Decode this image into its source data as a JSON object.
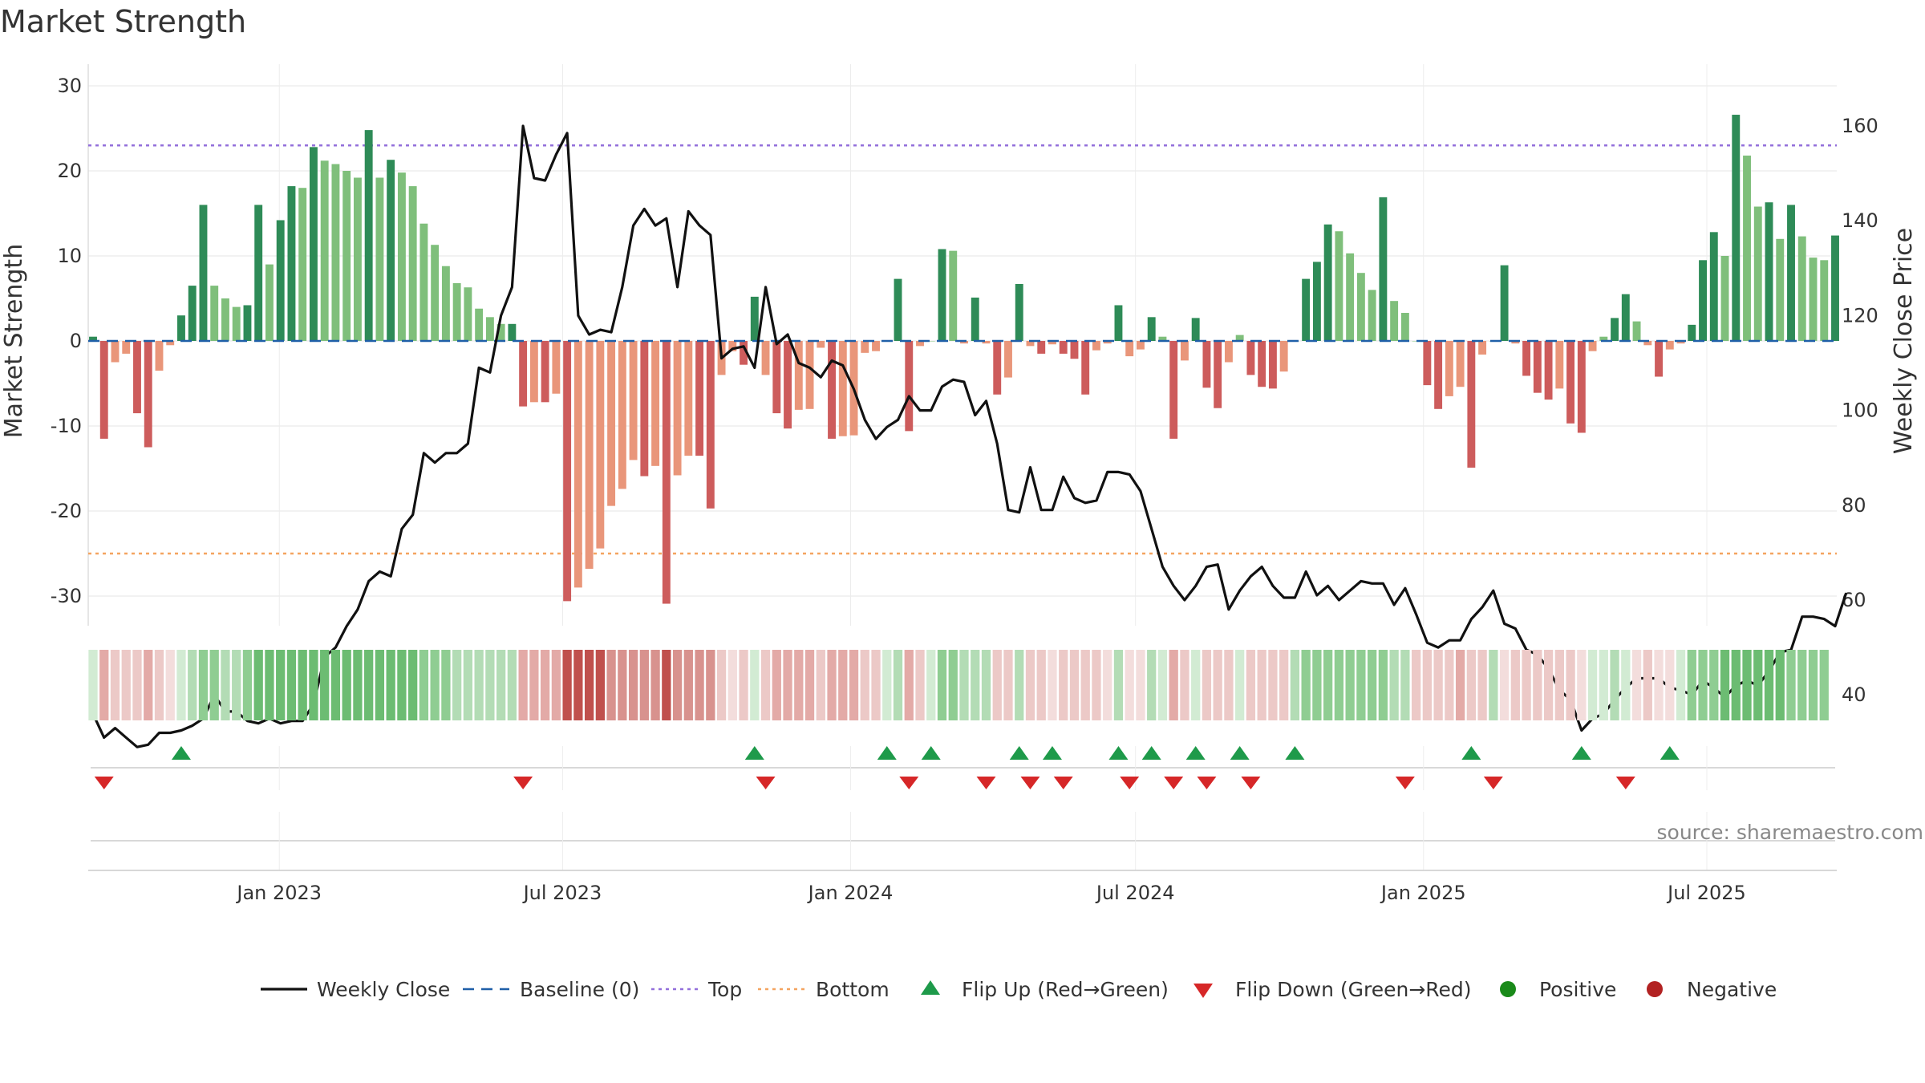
{
  "chart_data": {
    "type": "bar",
    "title": "Market Strength",
    "ylabel": "Market Strength",
    "y2label": "Weekly Close Price",
    "ylim": [
      -33,
      31
    ],
    "y2lim": [
      20,
      165
    ],
    "y_ticks": [
      30,
      20,
      10,
      0,
      -10,
      -20,
      -30
    ],
    "y2_ticks": [
      160,
      140,
      120,
      100,
      80,
      60,
      40
    ],
    "x_start": "2022-09-04",
    "x_end": "2025-09-21",
    "x_tick_labels": [
      "Jan 2023",
      "Jul 2023",
      "Jan 2024",
      "Jul 2024",
      "Jan 2025",
      "Jul 2025"
    ],
    "x_tick_dates": [
      "2023-01-01",
      "2023-07-01",
      "2024-01-01",
      "2024-07-01",
      "2025-01-01",
      "2025-07-01"
    ],
    "top_level": 23,
    "bottom_level": -25,
    "baseline": 0,
    "grid": true,
    "source": "source: sharemaestro.com",
    "colors": {
      "strong_positive": "#2e8b57",
      "weak_positive": "#7fbf7b",
      "strong_negative": "#cd5c5c",
      "weak_negative": "#e9967a",
      "close": "#111111",
      "baseline": "#1f5fa8",
      "top": "#9370db",
      "bottom": "#f4a460",
      "flip_up": "#1e9a4a",
      "flip_down": "#d62728",
      "positive": "#1a8a1a",
      "negative": "#b22222"
    },
    "strength": [
      0.5,
      -11.5,
      -2.5,
      -1.5,
      -8.5,
      -12.5,
      -3.5,
      -0.5,
      3,
      6.5,
      16,
      6.5,
      5,
      4,
      4.2,
      16,
      9,
      14.2,
      18.2,
      18,
      22.8,
      21.2,
      20.8,
      20,
      19.2,
      24.8,
      19.2,
      21.3,
      19.8,
      18.2,
      13.8,
      11.3,
      8.8,
      6.8,
      6.3,
      3.8,
      2.8,
      2,
      2,
      -7.7,
      -7.2,
      -7.2,
      -6.2,
      -30.6,
      -29,
      -26.8,
      -24.4,
      -19.4,
      -17.4,
      -14,
      -15.9,
      -14.7,
      -30.9,
      -15.8,
      -13.5,
      -13.5,
      -19.7,
      -4,
      -1.2,
      -2.8,
      5.2,
      -4,
      -8.5,
      -10.3,
      -8.1,
      -8,
      -0.8,
      -11.5,
      -11.2,
      -11.1,
      -1.4,
      -1.2,
      0,
      7.3,
      -10.6,
      -0.6,
      0,
      10.8,
      10.6,
      -0.3,
      5.1,
      -0.3,
      -6.3,
      -4.3,
      6.7,
      -0.6,
      -1.5,
      -0.4,
      -1.5,
      -2.1,
      -6.3,
      -1.1,
      -0.3,
      4.2,
      -1.8,
      -1,
      2.8,
      0.5,
      -11.5,
      -2.3,
      2.7,
      -5.5,
      -7.9,
      -2.5,
      0.7,
      -4,
      -5.4,
      -5.6,
      -3.6,
      0,
      7.3,
      9.3,
      13.7,
      12.9,
      10.3,
      8,
      6,
      16.9,
      4.7,
      3.3,
      0,
      -5.2,
      -8,
      -6.5,
      -5.4,
      -14.9,
      -1.6,
      0,
      8.9,
      -0.3,
      -4.1,
      -6.1,
      -6.9,
      -5.6,
      -9.7,
      -10.8,
      -1.2,
      0.5,
      2.7,
      5.5,
      2.3,
      -0.5,
      -4.2,
      -1,
      -0.3,
      1.9,
      9.5,
      12.8,
      10,
      26.6,
      21.8,
      15.8,
      16.3,
      12,
      16,
      12.3,
      9.8,
      9.5,
      12.4
    ],
    "close": [
      36,
      31,
      33,
      31,
      29,
      29.5,
      32,
      32,
      32.5,
      33.5,
      35,
      40,
      36.5,
      36.5,
      34.5,
      34,
      35,
      34,
      34.5,
      34.5,
      38,
      48,
      50,
      54.5,
      58,
      64,
      66,
      65,
      75,
      78,
      91,
      89,
      91,
      91,
      93,
      109,
      108,
      120,
      126,
      160,
      149,
      148.5,
      154,
      158.5,
      120,
      116,
      117,
      116.5,
      126,
      139,
      142.5,
      139,
      140.5,
      126,
      142,
      139,
      137,
      111,
      113,
      113.5,
      109,
      126,
      114,
      116,
      110,
      109,
      107,
      110.5,
      109.5,
      104.5,
      98,
      94,
      96.5,
      98,
      103,
      100,
      100,
      105,
      106.5,
      106,
      99,
      102,
      93,
      79,
      78.5,
      88,
      79,
      79,
      86,
      81.5,
      80.5,
      81,
      87,
      87,
      86.5,
      83,
      75,
      67,
      63,
      60,
      63,
      67,
      67.5,
      58,
      62,
      65,
      67,
      63,
      60.5,
      60.5,
      66,
      61,
      63,
      60,
      62,
      64,
      63.5,
      63.5,
      59,
      62.5,
      57,
      51,
      50,
      51.5,
      51.5,
      56,
      58.5,
      62,
      55,
      54,
      49.5,
      48.5,
      45.5,
      41,
      39,
      32.5,
      35,
      36,
      39,
      41.5,
      43.5,
      43.5,
      43.5,
      41.5,
      41,
      40,
      43,
      41.5,
      39.5,
      42,
      43,
      42,
      45,
      49,
      49.5,
      56.5,
      56.5,
      56,
      54.5,
      61.5
    ],
    "heat_levels": [
      1,
      -3,
      -2,
      -2,
      -2,
      -3,
      -2,
      -1,
      1,
      2,
      3,
      3,
      2,
      2,
      3,
      4,
      4,
      4,
      4,
      4,
      4,
      4,
      4,
      4,
      4,
      4,
      4,
      4,
      4,
      4,
      3,
      3,
      3,
      2,
      2,
      2,
      2,
      2,
      2,
      -3,
      -3,
      -3,
      -3,
      -5,
      -5,
      -5,
      -5,
      -4,
      -4,
      -4,
      -4,
      -4,
      -5,
      -4,
      -4,
      -4,
      -4,
      -2,
      -1,
      -2,
      1,
      -2,
      -3,
      -3,
      -3,
      -3,
      -2,
      -3,
      -3,
      -3,
      -2,
      -2,
      1,
      2,
      -3,
      -2,
      1,
      3,
      3,
      2,
      2,
      2,
      -2,
      -2,
      2,
      -2,
      -2,
      -1,
      -2,
      -2,
      -2,
      -2,
      -1,
      2,
      -1,
      -1,
      2,
      1,
      -3,
      -2,
      1,
      -2,
      -2,
      -2,
      1,
      -2,
      -2,
      -2,
      -2,
      2,
      3,
      3,
      3,
      3,
      3,
      3,
      3,
      3,
      2,
      2,
      -2,
      -2,
      -2,
      -2,
      -3,
      -2,
      -2,
      2,
      -1,
      -2,
      -2,
      -2,
      -2,
      -2,
      -2,
      -1,
      1,
      1,
      2,
      1,
      -1,
      -2,
      -1,
      -1,
      1,
      3,
      3,
      3,
      4,
      4,
      4,
      4,
      4,
      4,
      3,
      3,
      3,
      3
    ],
    "flip_up_weeks": [
      8,
      60,
      72,
      76,
      84,
      87,
      93,
      96,
      100,
      104,
      109,
      125,
      135,
      143
    ],
    "flip_down_weeks": [
      1,
      39,
      61,
      74,
      81,
      85,
      88,
      94,
      98,
      101,
      105,
      119,
      127,
      139
    ],
    "legend": [
      {
        "label": "Weekly Close",
        "symbol": "line-solid"
      },
      {
        "label": "Baseline (0)",
        "symbol": "line-dashed"
      },
      {
        "label": "Top",
        "symbol": "line-dotted-purple"
      },
      {
        "label": "Bottom",
        "symbol": "line-dotted-orange"
      },
      {
        "label": "Flip Up (Red→Green)",
        "symbol": "triangle-up-green"
      },
      {
        "label": "Flip Down (Green→Red)",
        "symbol": "triangle-down-red"
      },
      {
        "label": "Positive",
        "symbol": "dot-green"
      },
      {
        "label": "Negative",
        "symbol": "dot-red"
      }
    ]
  }
}
